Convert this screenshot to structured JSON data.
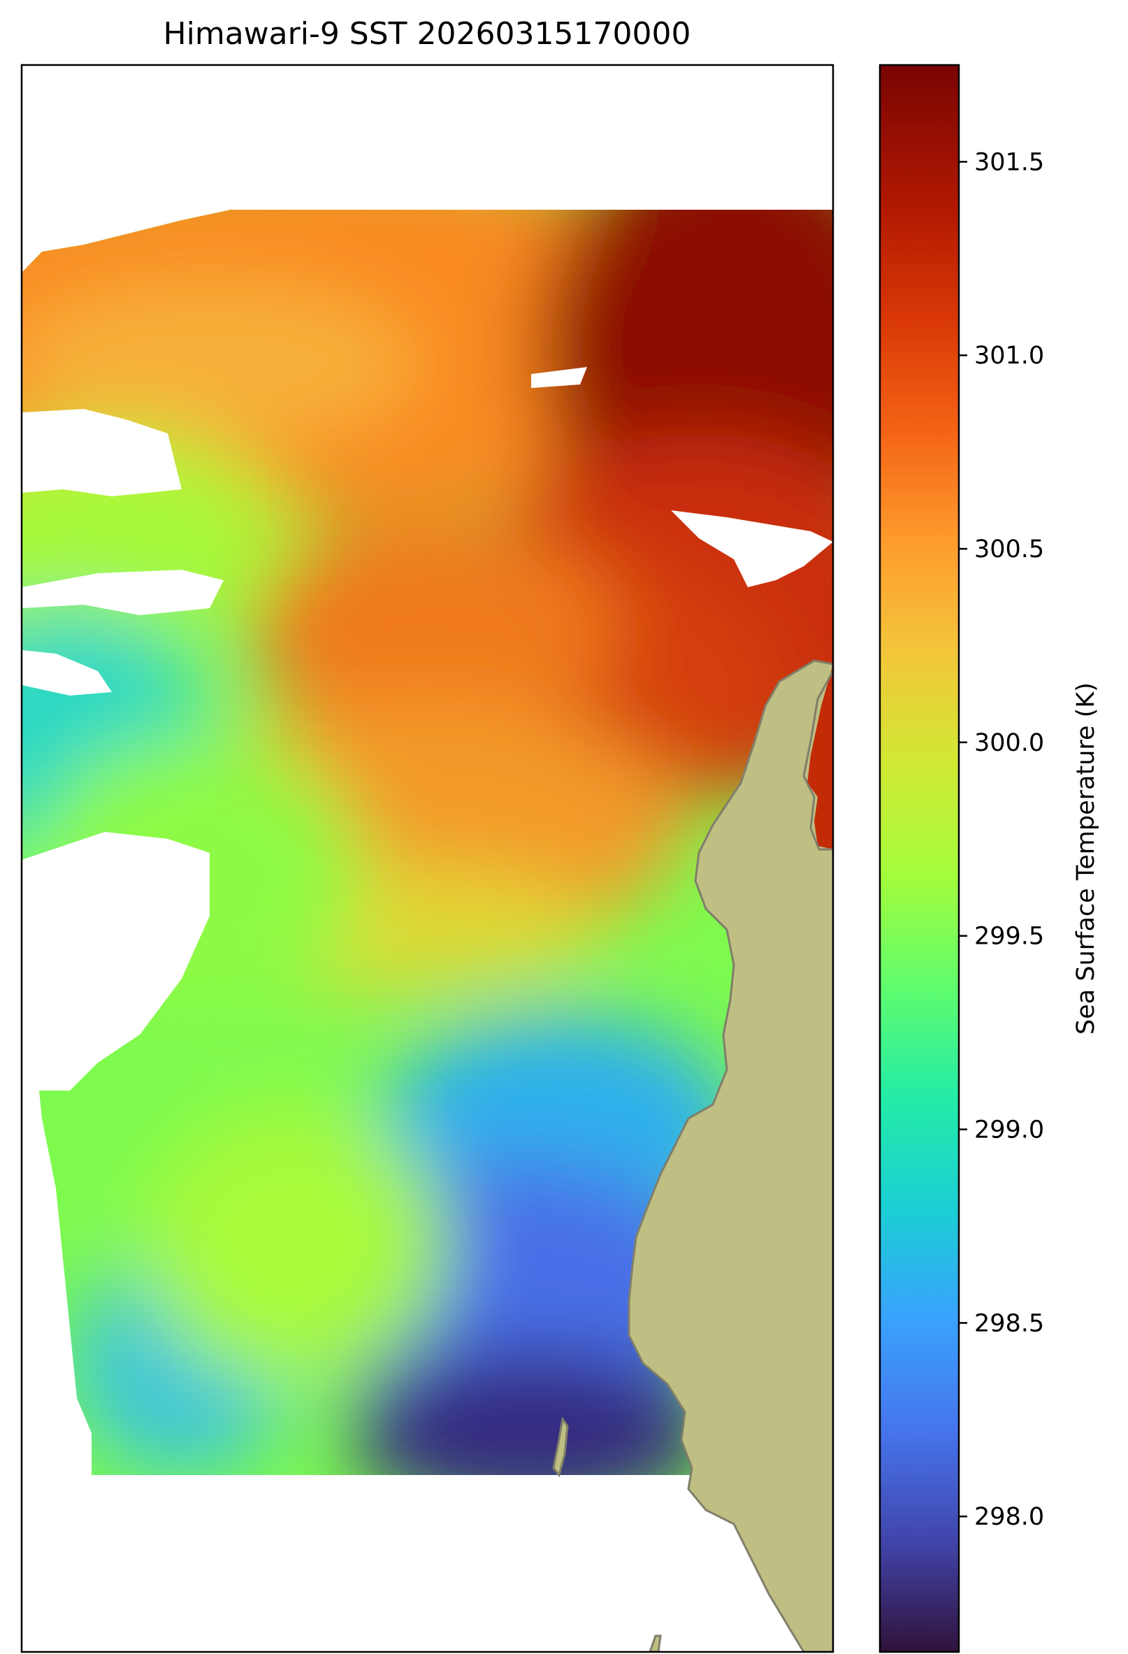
{
  "chart_data": {
    "type": "heatmap",
    "title": "Himawari-9 SST 20260315170000",
    "colorbar": {
      "label": "Sea Surface Temperature (K)",
      "colormap": "turbo",
      "vmin": 297.65,
      "vmax": 301.75,
      "ticks": [
        298.0,
        298.5,
        299.0,
        299.5,
        300.0,
        300.5,
        301.0,
        301.5
      ],
      "tick_labels": [
        "298.0",
        "298.5",
        "299.0",
        "299.5",
        "300.0",
        "300.5",
        "301.0",
        "301.5"
      ]
    },
    "field_summary": {
      "max_region": "north-east",
      "min_region": "south",
      "approx_range": [
        297.7,
        301.75
      ]
    },
    "land_color": "#bfbf83",
    "coast_color": "#7f7f6a",
    "missing_color": "#ffffff"
  }
}
